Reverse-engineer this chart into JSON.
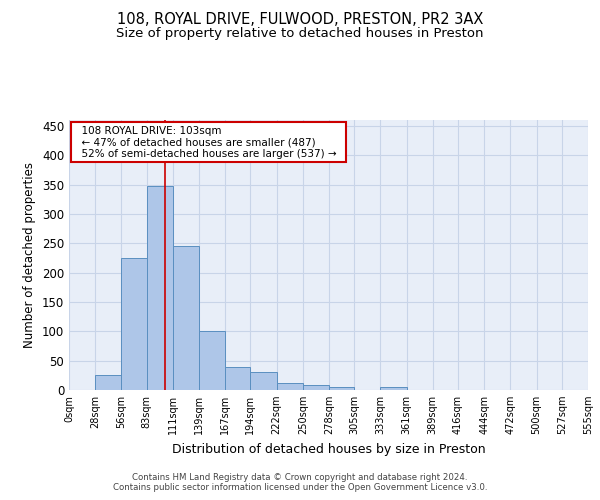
{
  "title_line1": "108, ROYAL DRIVE, FULWOOD, PRESTON, PR2 3AX",
  "title_line2": "Size of property relative to detached houses in Preston",
  "xlabel": "Distribution of detached houses by size in Preston",
  "ylabel": "Number of detached properties",
  "bar_values": [
    0,
    25,
    225,
    347,
    245,
    100,
    40,
    30,
    12,
    8,
    5,
    0,
    5,
    0,
    0,
    0,
    0,
    0,
    0,
    0
  ],
  "bin_edges": [
    0,
    28,
    56,
    83,
    111,
    139,
    167,
    194,
    222,
    250,
    278,
    305,
    333,
    361,
    389,
    416,
    444,
    472,
    500,
    527,
    555
  ],
  "xtick_labels": [
    "0sqm",
    "28sqm",
    "56sqm",
    "83sqm",
    "111sqm",
    "139sqm",
    "167sqm",
    "194sqm",
    "222sqm",
    "250sqm",
    "278sqm",
    "305sqm",
    "333sqm",
    "361sqm",
    "389sqm",
    "416sqm",
    "444sqm",
    "472sqm",
    "500sqm",
    "527sqm",
    "555sqm"
  ],
  "bar_color": "#aec6e8",
  "bar_edge_color": "#5a8fc0",
  "grid_color": "#c8d4e8",
  "background_color": "#e8eef8",
  "red_line_x": 103,
  "annotation_text": "  108 ROYAL DRIVE: 103sqm  \n  ← 47% of detached houses are smaller (487)  \n  52% of semi-detached houses are larger (537) →  ",
  "annotation_box_color": "#ffffff",
  "annotation_box_edge": "#cc0000",
  "ylim": [
    0,
    460
  ],
  "yticks": [
    0,
    50,
    100,
    150,
    200,
    250,
    300,
    350,
    400,
    450
  ],
  "footer_text": "Contains HM Land Registry data © Crown copyright and database right 2024.\nContains public sector information licensed under the Open Government Licence v3.0.",
  "title_fontsize": 10.5,
  "subtitle_fontsize": 9.5,
  "ylabel_fontsize": 8.5,
  "xlabel_fontsize": 9
}
